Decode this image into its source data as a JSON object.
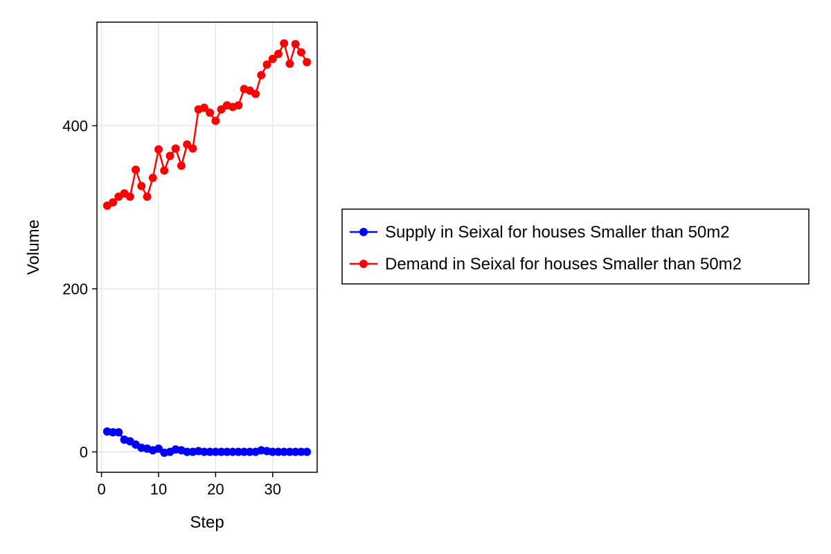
{
  "chart_data": {
    "type": "line",
    "title": "",
    "xlabel": "Step",
    "ylabel": "Volume",
    "xlim": [
      -0.8,
      37.8
    ],
    "ylim": [
      -25,
      527
    ],
    "xticks": [
      0,
      10,
      20,
      30
    ],
    "yticks": [
      0,
      200,
      400
    ],
    "grid": true,
    "legend_position": "right",
    "x": [
      1,
      2,
      3,
      4,
      5,
      6,
      7,
      8,
      9,
      10,
      11,
      12,
      13,
      14,
      15,
      16,
      17,
      18,
      19,
      20,
      21,
      22,
      23,
      24,
      25,
      26,
      27,
      28,
      29,
      30,
      31,
      32,
      33,
      34,
      35,
      36
    ],
    "series": [
      {
        "name": "Supply in Seixal for houses Smaller than 50m2",
        "color": "#0000ff",
        "marker": "circle",
        "values": [
          25,
          24,
          24,
          15,
          13,
          9,
          5,
          4,
          2,
          4,
          -1,
          0,
          3,
          2,
          0,
          0,
          1,
          0,
          0,
          0,
          0,
          0,
          0,
          0,
          0,
          0,
          0,
          2,
          1,
          0,
          0,
          0,
          0,
          0,
          0,
          0
        ]
      },
      {
        "name": "Demand in Seixal for houses Smaller than 50m2",
        "color": "#ff0000",
        "marker": "circle",
        "values": [
          302,
          306,
          313,
          317,
          313,
          346,
          326,
          313,
          336,
          371,
          345,
          363,
          372,
          351,
          377,
          372,
          420,
          422,
          416,
          406,
          420,
          425,
          423,
          425,
          445,
          443,
          439,
          462,
          475,
          482,
          488,
          501,
          476,
          500,
          490,
          478
        ]
      }
    ]
  }
}
